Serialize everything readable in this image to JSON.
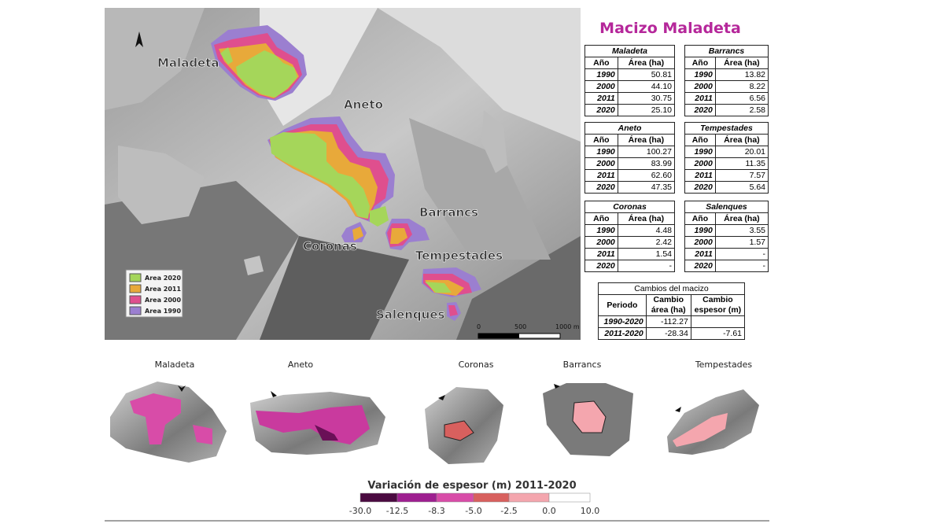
{
  "map": {
    "labels": [
      "Maladeta",
      "Aneto",
      "Barrancs",
      "Coronas",
      "Tempestades",
      "Salenques"
    ],
    "legend": [
      {
        "name": "Area 2020",
        "color": "#a5d65a"
      },
      {
        "name": "Area 2011",
        "color": "#e8a93a"
      },
      {
        "name": "Area 2000",
        "color": "#df4f8e"
      },
      {
        "name": "Area 1990",
        "color": "#9b7fd0"
      }
    ],
    "scale": [
      "0",
      "500",
      "1000 m"
    ]
  },
  "title": "Macizo Maladeta",
  "tables": [
    {
      "title": "Maladeta",
      "header": [
        "Año",
        "Área (ha)"
      ],
      "rows": [
        [
          "1990",
          "50.81"
        ],
        [
          "2000",
          "44.10"
        ],
        [
          "2011",
          "30.75"
        ],
        [
          "2020",
          "25.10"
        ]
      ]
    },
    {
      "title": "Barrancs",
      "header": [
        "Año",
        "Área (ha)"
      ],
      "rows": [
        [
          "1990",
          "13.82"
        ],
        [
          "2000",
          "8.22"
        ],
        [
          "2011",
          "6.56"
        ],
        [
          "2020",
          "2.58"
        ]
      ]
    },
    {
      "title": "Aneto",
      "header": [
        "Año",
        "Área (ha)"
      ],
      "rows": [
        [
          "1990",
          "100.27"
        ],
        [
          "2000",
          "83.99"
        ],
        [
          "2011",
          "62.60"
        ],
        [
          "2020",
          "47.35"
        ]
      ]
    },
    {
      "title": "Tempestades",
      "header": [
        "Año",
        "Área (ha)"
      ],
      "rows": [
        [
          "1990",
          "20.01"
        ],
        [
          "2000",
          "11.35"
        ],
        [
          "2011",
          "7.57"
        ],
        [
          "2020",
          "5.64"
        ]
      ]
    },
    {
      "title": "Coronas",
      "header": [
        "Año",
        "Área (ha)"
      ],
      "rows": [
        [
          "1990",
          "4.48"
        ],
        [
          "2000",
          "2.42"
        ],
        [
          "2011",
          "1.54"
        ],
        [
          "2020",
          "-"
        ]
      ]
    },
    {
      "title": "Salenques",
      "header": [
        "Año",
        "Área (ha)"
      ],
      "rows": [
        [
          "1990",
          "3.55"
        ],
        [
          "2000",
          "1.57"
        ],
        [
          "2011",
          "-"
        ],
        [
          "2020",
          "-"
        ]
      ]
    }
  ],
  "changes": {
    "title": "Cambios del macizo",
    "header": [
      "Periodo",
      "Cambio área (ha)",
      "Cambio espesor (m)"
    ],
    "rows": [
      [
        "1990-2020",
        "-112.27"
      ],
      [
        "2011-2020",
        "-28.34",
        "-7.61"
      ]
    ]
  },
  "panels": [
    "Maladeta",
    "Aneto",
    "Coronas",
    "Barrancs",
    "Tempestades"
  ],
  "colorbar": {
    "title": "Variación de espesor (m) 2011-2020",
    "labels": [
      "-30.0",
      "-12.5",
      "-8.3",
      "-5.0",
      "-2.5",
      "0.0",
      "10.0"
    ],
    "colors": [
      "#4a0a40",
      "#9e1f90",
      "#d84ca8",
      "#d8605e",
      "#f4a6ae",
      "#ffffff"
    ]
  }
}
